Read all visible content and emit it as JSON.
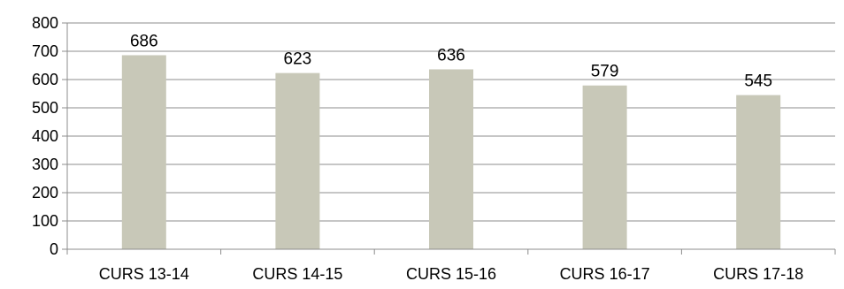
{
  "chart_data": {
    "type": "bar",
    "categories": [
      "CURS 13-14",
      "CURS 14-15",
      "CURS 15-16",
      "CURS 16-17",
      "CURS 17-18"
    ],
    "values": [
      686,
      623,
      636,
      579,
      545
    ],
    "title": "",
    "xlabel": "",
    "ylabel": "",
    "ylim": [
      0,
      800
    ],
    "yticks": [
      0,
      100,
      200,
      300,
      400,
      500,
      600,
      700,
      800
    ],
    "grid": true,
    "legend": "none",
    "colors": {
      "bar": "#c8c8b8",
      "grid": "#8c8c8c",
      "axis": "#8c8c8c"
    }
  }
}
